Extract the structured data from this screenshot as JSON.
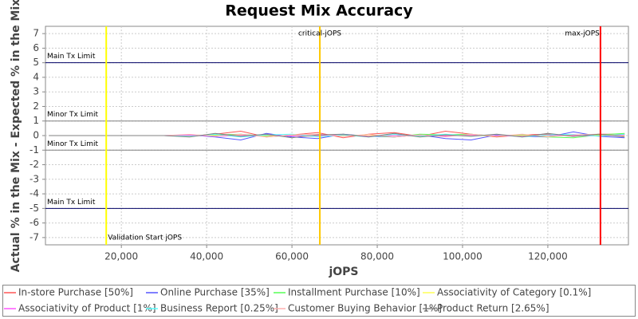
{
  "chart_data": {
    "type": "line",
    "title": "Request Mix Accuracy",
    "x_label": "jOPS",
    "y_label": "Actual % in the Mix - Expected % in the Mix",
    "x": [
      3000,
      30000,
      36000,
      42000,
      48000,
      54000,
      60000,
      66000,
      72000,
      78000,
      84000,
      90000,
      96000,
      102000,
      108000,
      114000,
      120000,
      126000,
      132000,
      138000
    ],
    "series": [
      {
        "name": "In-store Purchase [50%]",
        "color": "#ff5555",
        "values": [
          0,
          0,
          -0.05,
          0.1,
          0.3,
          -0.1,
          0.05,
          0.2,
          -0.15,
          0.1,
          0.2,
          -0.05,
          0.3,
          0.1,
          -0.1,
          0.05,
          0.1,
          -0.05,
          0.1,
          0.1
        ]
      },
      {
        "name": "Online Purchase [35%]",
        "color": "#5555ff",
        "values": [
          0,
          0,
          0.05,
          -0.1,
          -0.3,
          0.15,
          -0.1,
          -0.2,
          0.1,
          -0.05,
          -0.1,
          0.05,
          -0.2,
          -0.3,
          0.05,
          -0.05,
          -0.1,
          0.25,
          -0.05,
          -0.15
        ]
      },
      {
        "name": "Installment Purchase [10%]",
        "color": "#55ff55",
        "values": [
          0,
          0,
          0,
          0.05,
          0.1,
          -0.05,
          0,
          -0.05,
          0.05,
          0,
          -0.1,
          0.1,
          0.05,
          0.1,
          -0.05,
          0.05,
          -0.1,
          -0.15,
          0.05,
          0.15
        ]
      },
      {
        "name": "Associativity of Category [0.1%]",
        "color": "#ffff55",
        "values": [
          0,
          0,
          0,
          0,
          0.02,
          0,
          0,
          -0.02,
          0,
          0,
          0.02,
          0,
          0,
          0,
          -0.02,
          0,
          0,
          0.02,
          0,
          0
        ]
      },
      {
        "name": "Associativity of Product [1%]",
        "color": "#ff55ff",
        "values": [
          0,
          0,
          0.03,
          -0.05,
          0,
          0.05,
          -0.03,
          0,
          0.05,
          -0.05,
          0,
          0.03,
          -0.03,
          0.05,
          0,
          -0.05,
          0.03,
          0,
          -0.03,
          0.05
        ]
      },
      {
        "name": "Business Report [0.25%]",
        "color": "#55ffff",
        "values": [
          0,
          0,
          -0.05,
          0.08,
          -0.1,
          0.05,
          0.1,
          -0.08,
          0.05,
          -0.1,
          0.08,
          -0.05,
          0.1,
          -0.05,
          0.08,
          -0.1,
          0.05,
          0.08,
          -0.05,
          0.1
        ]
      },
      {
        "name": "Customer Buying Behavior [1%]",
        "color": "#ffafaf",
        "values": [
          0,
          0,
          0.08,
          -0.05,
          0.1,
          -0.1,
          0.05,
          0.1,
          -0.05,
          0.08,
          -0.1,
          0.05,
          -0.08,
          0.1,
          -0.05,
          0.1,
          -0.08,
          0.05,
          0.1,
          -0.05
        ]
      },
      {
        "name": "Product Return [2.65%]",
        "color": "#808080",
        "values": [
          0,
          0,
          -0.1,
          0.15,
          -0.05,
          0.1,
          -0.15,
          0.05,
          0.1,
          -0.1,
          0.15,
          -0.1,
          0.05,
          -0.05,
          0.1,
          -0.1,
          0.15,
          -0.05,
          0.1,
          -0.1
        ]
      }
    ],
    "xlim": [
      2200,
      138900
    ],
    "ylim": [
      -7.5,
      7.5
    ],
    "xticks": [
      {
        "value": 20000,
        "label": "20,000"
      },
      {
        "value": 40000,
        "label": "40,000"
      },
      {
        "value": 60000,
        "label": "60,000"
      },
      {
        "value": 80000,
        "label": "80,000"
      },
      {
        "value": 100000,
        "label": "100,000"
      },
      {
        "value": 120000,
        "label": "120,000"
      }
    ],
    "yticks": [
      -7,
      -6,
      -5,
      -4,
      -3,
      -2,
      -1,
      0,
      1,
      2,
      3,
      4,
      5,
      6,
      7
    ],
    "grid": true,
    "limits": [
      {
        "value": 5,
        "label": "Main Tx Limit",
        "color": "#000066"
      },
      {
        "value": 1,
        "label": "Minor Tx Limit",
        "color": "#808080"
      },
      {
        "value": -1,
        "label": "Minor Tx Limit",
        "color": "#808080"
      },
      {
        "value": -5,
        "label": "Main Tx Limit",
        "color": "#000066"
      }
    ],
    "markers": [
      {
        "value": 16450,
        "label": "Validation Start jOPS",
        "color": "#ffff00"
      },
      {
        "value": 66540,
        "label": "critical-jOPS",
        "color": "#ffc800"
      },
      {
        "value": 132340,
        "label": "max-jOPS",
        "color": "#ff0000"
      }
    ]
  }
}
